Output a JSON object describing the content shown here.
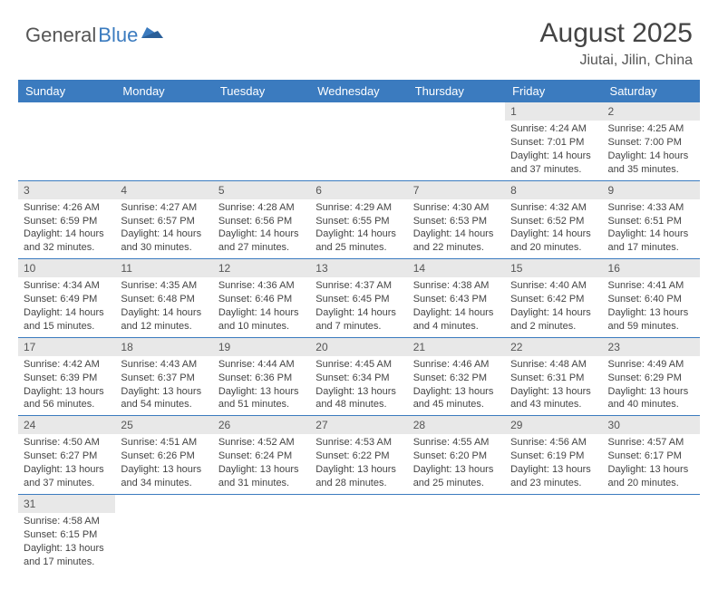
{
  "logo": {
    "general": "General",
    "blue": "Blue"
  },
  "title": "August 2025",
  "location": "Jiutai, Jilin, China",
  "colors": {
    "header_bg": "#3b7bbf",
    "header_text": "#ffffff",
    "daynum_bg": "#e8e8e8",
    "body_text": "#444444",
    "divider": "#3b7bbf"
  },
  "fonts": {
    "title_size": 30,
    "location_size": 16,
    "weekday_size": 13,
    "cell_size": 11
  },
  "weekdays": [
    "Sunday",
    "Monday",
    "Tuesday",
    "Wednesday",
    "Thursday",
    "Friday",
    "Saturday"
  ],
  "weeks": [
    [
      null,
      null,
      null,
      null,
      null,
      {
        "n": "1",
        "sr": "Sunrise: 4:24 AM",
        "ss": "Sunset: 7:01 PM",
        "dl": "Daylight: 14 hours and 37 minutes."
      },
      {
        "n": "2",
        "sr": "Sunrise: 4:25 AM",
        "ss": "Sunset: 7:00 PM",
        "dl": "Daylight: 14 hours and 35 minutes."
      }
    ],
    [
      {
        "n": "3",
        "sr": "Sunrise: 4:26 AM",
        "ss": "Sunset: 6:59 PM",
        "dl": "Daylight: 14 hours and 32 minutes."
      },
      {
        "n": "4",
        "sr": "Sunrise: 4:27 AM",
        "ss": "Sunset: 6:57 PM",
        "dl": "Daylight: 14 hours and 30 minutes."
      },
      {
        "n": "5",
        "sr": "Sunrise: 4:28 AM",
        "ss": "Sunset: 6:56 PM",
        "dl": "Daylight: 14 hours and 27 minutes."
      },
      {
        "n": "6",
        "sr": "Sunrise: 4:29 AM",
        "ss": "Sunset: 6:55 PM",
        "dl": "Daylight: 14 hours and 25 minutes."
      },
      {
        "n": "7",
        "sr": "Sunrise: 4:30 AM",
        "ss": "Sunset: 6:53 PM",
        "dl": "Daylight: 14 hours and 22 minutes."
      },
      {
        "n": "8",
        "sr": "Sunrise: 4:32 AM",
        "ss": "Sunset: 6:52 PM",
        "dl": "Daylight: 14 hours and 20 minutes."
      },
      {
        "n": "9",
        "sr": "Sunrise: 4:33 AM",
        "ss": "Sunset: 6:51 PM",
        "dl": "Daylight: 14 hours and 17 minutes."
      }
    ],
    [
      {
        "n": "10",
        "sr": "Sunrise: 4:34 AM",
        "ss": "Sunset: 6:49 PM",
        "dl": "Daylight: 14 hours and 15 minutes."
      },
      {
        "n": "11",
        "sr": "Sunrise: 4:35 AM",
        "ss": "Sunset: 6:48 PM",
        "dl": "Daylight: 14 hours and 12 minutes."
      },
      {
        "n": "12",
        "sr": "Sunrise: 4:36 AM",
        "ss": "Sunset: 6:46 PM",
        "dl": "Daylight: 14 hours and 10 minutes."
      },
      {
        "n": "13",
        "sr": "Sunrise: 4:37 AM",
        "ss": "Sunset: 6:45 PM",
        "dl": "Daylight: 14 hours and 7 minutes."
      },
      {
        "n": "14",
        "sr": "Sunrise: 4:38 AM",
        "ss": "Sunset: 6:43 PM",
        "dl": "Daylight: 14 hours and 4 minutes."
      },
      {
        "n": "15",
        "sr": "Sunrise: 4:40 AM",
        "ss": "Sunset: 6:42 PM",
        "dl": "Daylight: 14 hours and 2 minutes."
      },
      {
        "n": "16",
        "sr": "Sunrise: 4:41 AM",
        "ss": "Sunset: 6:40 PM",
        "dl": "Daylight: 13 hours and 59 minutes."
      }
    ],
    [
      {
        "n": "17",
        "sr": "Sunrise: 4:42 AM",
        "ss": "Sunset: 6:39 PM",
        "dl": "Daylight: 13 hours and 56 minutes."
      },
      {
        "n": "18",
        "sr": "Sunrise: 4:43 AM",
        "ss": "Sunset: 6:37 PM",
        "dl": "Daylight: 13 hours and 54 minutes."
      },
      {
        "n": "19",
        "sr": "Sunrise: 4:44 AM",
        "ss": "Sunset: 6:36 PM",
        "dl": "Daylight: 13 hours and 51 minutes."
      },
      {
        "n": "20",
        "sr": "Sunrise: 4:45 AM",
        "ss": "Sunset: 6:34 PM",
        "dl": "Daylight: 13 hours and 48 minutes."
      },
      {
        "n": "21",
        "sr": "Sunrise: 4:46 AM",
        "ss": "Sunset: 6:32 PM",
        "dl": "Daylight: 13 hours and 45 minutes."
      },
      {
        "n": "22",
        "sr": "Sunrise: 4:48 AM",
        "ss": "Sunset: 6:31 PM",
        "dl": "Daylight: 13 hours and 43 minutes."
      },
      {
        "n": "23",
        "sr": "Sunrise: 4:49 AM",
        "ss": "Sunset: 6:29 PM",
        "dl": "Daylight: 13 hours and 40 minutes."
      }
    ],
    [
      {
        "n": "24",
        "sr": "Sunrise: 4:50 AM",
        "ss": "Sunset: 6:27 PM",
        "dl": "Daylight: 13 hours and 37 minutes."
      },
      {
        "n": "25",
        "sr": "Sunrise: 4:51 AM",
        "ss": "Sunset: 6:26 PM",
        "dl": "Daylight: 13 hours and 34 minutes."
      },
      {
        "n": "26",
        "sr": "Sunrise: 4:52 AM",
        "ss": "Sunset: 6:24 PM",
        "dl": "Daylight: 13 hours and 31 minutes."
      },
      {
        "n": "27",
        "sr": "Sunrise: 4:53 AM",
        "ss": "Sunset: 6:22 PM",
        "dl": "Daylight: 13 hours and 28 minutes."
      },
      {
        "n": "28",
        "sr": "Sunrise: 4:55 AM",
        "ss": "Sunset: 6:20 PM",
        "dl": "Daylight: 13 hours and 25 minutes."
      },
      {
        "n": "29",
        "sr": "Sunrise: 4:56 AM",
        "ss": "Sunset: 6:19 PM",
        "dl": "Daylight: 13 hours and 23 minutes."
      },
      {
        "n": "30",
        "sr": "Sunrise: 4:57 AM",
        "ss": "Sunset: 6:17 PM",
        "dl": "Daylight: 13 hours and 20 minutes."
      }
    ],
    [
      {
        "n": "31",
        "sr": "Sunrise: 4:58 AM",
        "ss": "Sunset: 6:15 PM",
        "dl": "Daylight: 13 hours and 17 minutes."
      },
      null,
      null,
      null,
      null,
      null,
      null
    ]
  ]
}
